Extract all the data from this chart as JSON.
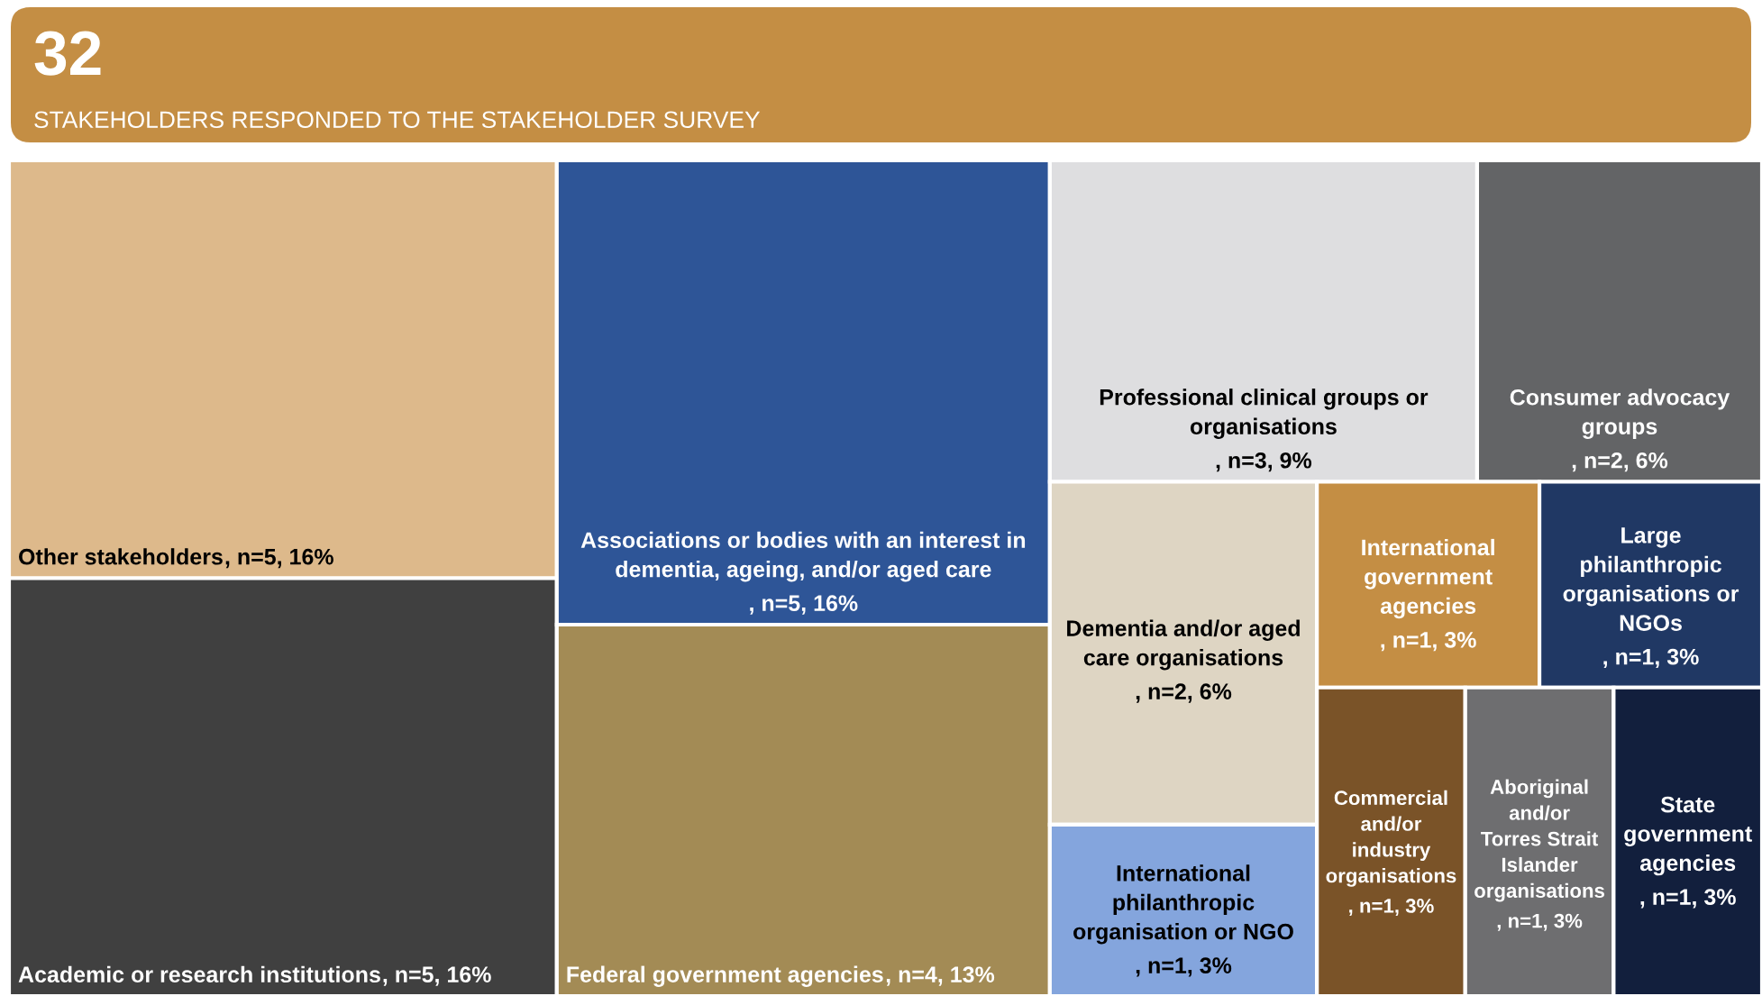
{
  "chart_data": {
    "type": "other",
    "title": "32",
    "subtitle": "STAKEHOLDERS RESPONDED TO THE STAKEHOLDER SURVEY",
    "categories": [
      "Other stakeholders",
      "Academic or research institutions",
      "Associations or bodies with an interest in dementia, ageing, and/or aged care",
      "Federal government agencies",
      "Professional clinical groups or organisations",
      "Consumer advocacy groups",
      "Dementia and/or aged care organisations",
      "International philanthropic organisation or NGO",
      "International government agencies",
      "Large philanthropic organisations or NGOs",
      "Commercial and/or industry organisations",
      "Aboriginal and/or Torres Strait Islander organisations",
      "State government agencies"
    ],
    "values": [
      5,
      5,
      5,
      4,
      3,
      2,
      2,
      1,
      1,
      1,
      1,
      1,
      1
    ],
    "value_labels": [
      ", n=5, 16%",
      ", n=5, 16%",
      ", n=5, 16%",
      ", n=4, 13%",
      ", n=3, 9%",
      ", n=2, 6%",
      ", n=2, 6%",
      ", n=1, 3%",
      ", n=1, 3%",
      ", n=1, 3%",
      ", n=1, 3%",
      ", n=1, 3%",
      ", n=1, 3%"
    ],
    "colors": [
      "#ddb98b",
      "#404040",
      "#2e5597",
      "#a38b55",
      "#dedee0",
      "#636466",
      "#ded5c3",
      "#84a5dd",
      "#c48e44",
      "#203864",
      "#7a5328",
      "#6e6e70",
      "#121f3d"
    ]
  }
}
